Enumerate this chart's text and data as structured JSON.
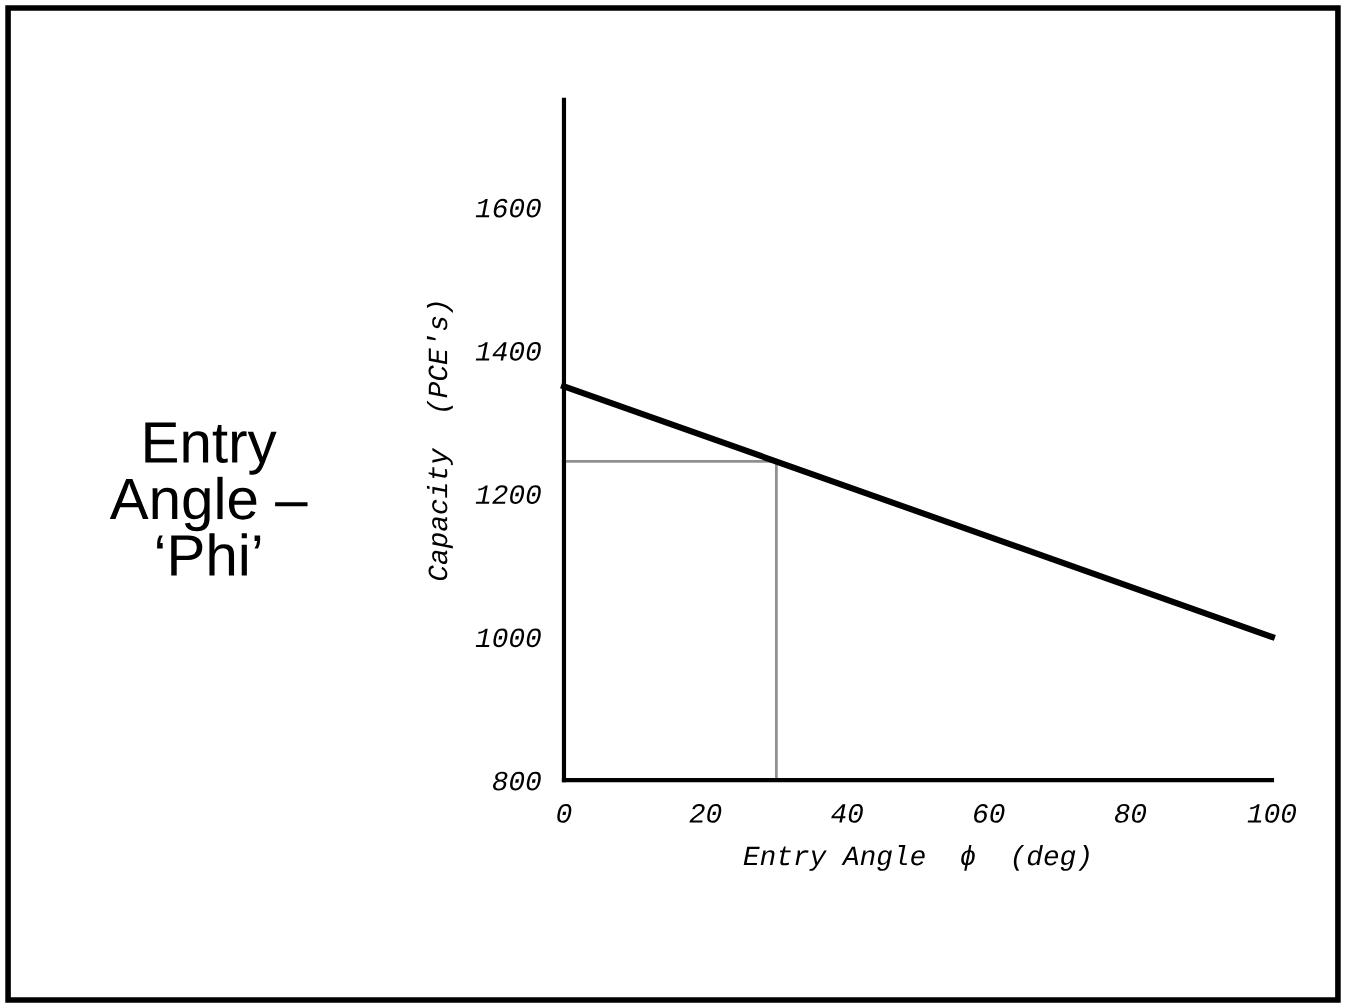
{
  "chart_data": {
    "type": "line",
    "title": "Entry\nAngle –\n‘Phi’",
    "xlabel": "Entry Angle  ϕ  (deg)",
    "ylabel": "Capacity  (PCE's)",
    "x": [
      0,
      100
    ],
    "series": [
      {
        "color": "#000000",
        "values": [
          1350,
          1000
        ]
      }
    ],
    "ref_lines": [
      {
        "axis": "y",
        "value": 1245,
        "color": "#909090"
      },
      {
        "axis": "x",
        "value": 30,
        "color": "#909090"
      }
    ],
    "xlim": [
      0,
      100
    ],
    "xticks": [
      0,
      20,
      40,
      60,
      80,
      100
    ],
    "ylim": [
      800,
      1750
    ],
    "yticks": [
      800,
      1000,
      1200,
      1400,
      1600
    ],
    "grid": false,
    "legend": false
  }
}
